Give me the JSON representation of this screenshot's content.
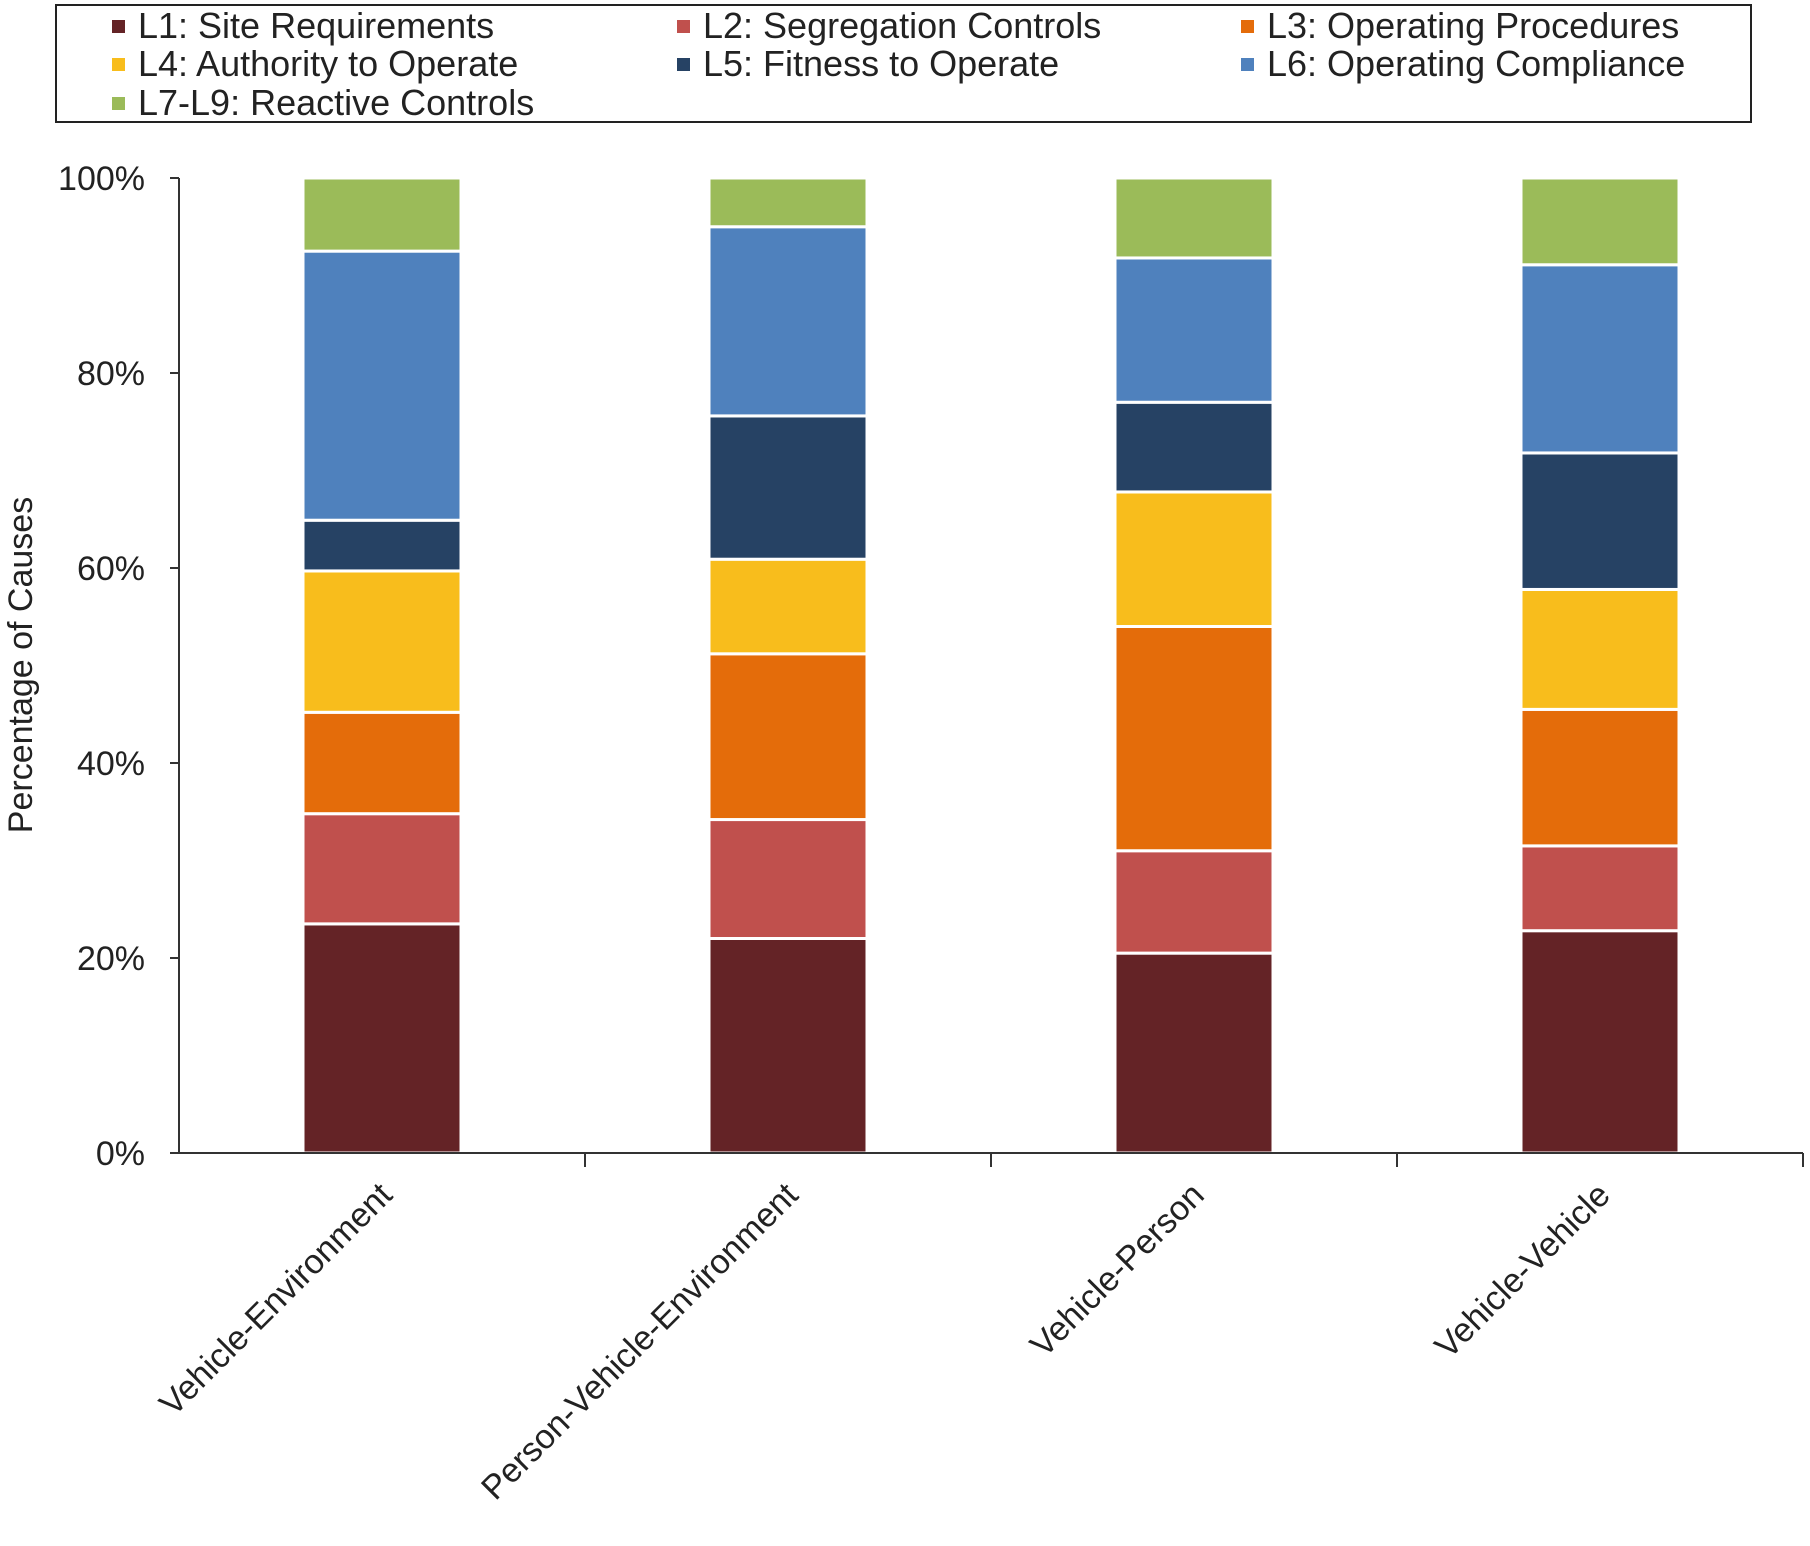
{
  "chart_data": {
    "type": "bar",
    "stacked": true,
    "normalized": true,
    "title": "",
    "xlabel": "",
    "ylabel": "Percentage of Causes",
    "ylim": [
      0,
      100
    ],
    "yticks": [
      0,
      20,
      40,
      60,
      80,
      100
    ],
    "ytick_labels": [
      "0%",
      "20%",
      "40%",
      "60%",
      "80%",
      "100%"
    ],
    "grid": false,
    "legend_position": "top",
    "categories": [
      "Vehicle-Environment",
      "Person-Vehicle-Environment",
      "Vehicle-Person",
      "Vehicle-Vehicle"
    ],
    "series": [
      {
        "name": "L1: Site Requirements",
        "color": "#642326",
        "values": [
          23.5,
          22.0,
          20.5,
          22.8
        ]
      },
      {
        "name": "L2: Segregation Controls",
        "color": "#C0504D",
        "values": [
          11.3,
          12.2,
          10.5,
          8.7
        ]
      },
      {
        "name": "L3: Operating Procedures",
        "color": "#E46C0A",
        "values": [
          10.4,
          17.0,
          23.0,
          14.0
        ]
      },
      {
        "name": "L4: Authority to Operate",
        "color": "#F8BD1C",
        "values": [
          14.5,
          9.7,
          13.8,
          12.3
        ]
      },
      {
        "name": "L5: Fitness to Operate",
        "color": "#264264",
        "values": [
          5.2,
          14.7,
          9.2,
          14.0
        ]
      },
      {
        "name": "L6: Operating Compliance",
        "color": "#4F81BD",
        "values": [
          27.6,
          19.4,
          14.8,
          19.3
        ]
      },
      {
        "name": "L7-L9: Reactive Controls",
        "color": "#9BBB59",
        "values": [
          7.5,
          5.0,
          8.2,
          8.9
        ]
      }
    ]
  }
}
